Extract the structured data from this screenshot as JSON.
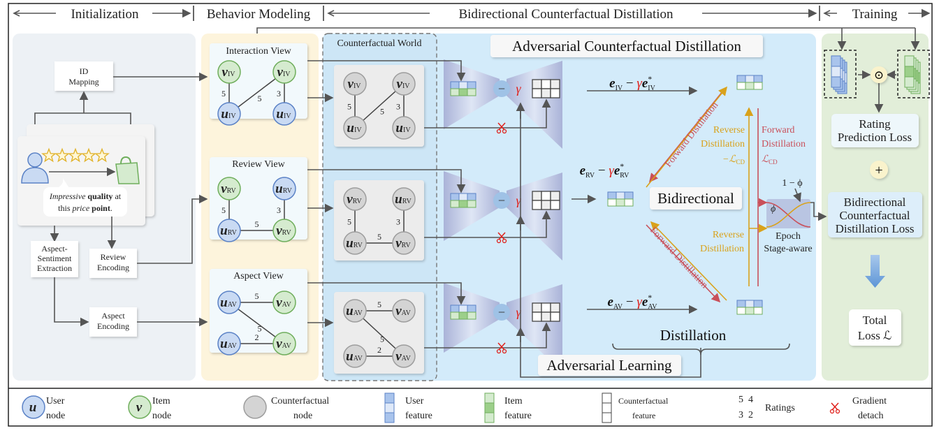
{
  "header": {
    "sections": [
      "Initialization",
      "Behavior Modeling",
      "Bidirectional Counterfactual Distillation",
      "Training"
    ]
  },
  "init": {
    "id_mapping": [
      "ID",
      "Mapping"
    ],
    "review_text": [
      [
        {
          "t": "Impressive",
          "s": "it"
        },
        {
          "t": " quality",
          "s": "bd"
        },
        {
          "t": " at",
          "s": ""
        }
      ],
      [
        {
          "t": "this ",
          "s": ""
        },
        {
          "t": "price",
          "s": "it"
        },
        {
          "t": " point",
          "s": "bd"
        },
        {
          "t": ".",
          "s": ""
        }
      ]
    ],
    "aspect_extraction": [
      "Aspect-",
      "Sentiment",
      "Extraction"
    ],
    "review_encoding": [
      "Review",
      "Encoding"
    ],
    "aspect_encoding": [
      "Aspect",
      "Encoding"
    ]
  },
  "views": [
    {
      "title": "Interaction View",
      "nodes": [
        {
          "type": "item",
          "sym": "v",
          "sub": "IV"
        },
        {
          "type": "item",
          "sym": "v",
          "sub": "IV"
        },
        {
          "type": "user",
          "sym": "u",
          "sub": "IV"
        },
        {
          "type": "user",
          "sym": "u",
          "sub": "IV"
        }
      ],
      "edges": [
        {
          "from": 0,
          "to": 2,
          "rating": "5"
        },
        {
          "from": 1,
          "to": 2,
          "rating": "5"
        },
        {
          "from": 1,
          "to": 3,
          "rating": "3"
        }
      ]
    },
    {
      "title": "Review View",
      "nodes": [
        {
          "type": "item",
          "sym": "v",
          "sub": "RV"
        },
        {
          "type": "user",
          "sym": "u",
          "sub": "RV"
        },
        {
          "type": "user",
          "sym": "u",
          "sub": "RV"
        },
        {
          "type": "item",
          "sym": "v",
          "sub": "RV"
        }
      ],
      "edges": [
        {
          "from": 0,
          "to": 2,
          "rating": "5"
        },
        {
          "from": 1,
          "to": 3,
          "rating": "3"
        },
        {
          "from": 2,
          "to": 3,
          "rating": "5"
        }
      ]
    },
    {
      "title": "Aspect View",
      "nodes": [
        {
          "type": "user",
          "sym": "u",
          "sub": "AV"
        },
        {
          "type": "item",
          "sym": "v",
          "sub": "AV"
        },
        {
          "type": "user",
          "sym": "u",
          "sub": "AV"
        },
        {
          "type": "item",
          "sym": "v",
          "sub": "AV"
        }
      ],
      "edges": [
        {
          "from": 0,
          "to": 1,
          "rating": "5"
        },
        {
          "from": 0,
          "to": 3,
          "rating": "5"
        },
        {
          "from": 2,
          "to": 3,
          "rating": "2"
        }
      ]
    }
  ],
  "counterfactual_world": {
    "title": "Counterfactual World"
  },
  "distillation": {
    "title": "Adversarial Counterfactual Distillation",
    "minus": "−",
    "gamma": "γ",
    "formulas": [
      {
        "base": "e",
        "sub": "IV",
        "op": " − ",
        "gamma": "γ",
        "sup": "*"
      },
      {
        "base": "e",
        "sub": "RV",
        "op": " − ",
        "gamma": "γ",
        "sup": "*"
      },
      {
        "base": "e",
        "sub": "AV",
        "op": " − ",
        "gamma": "γ",
        "sup": "*"
      }
    ],
    "bidirectional": "Bidirectional",
    "distillation": "Distillation",
    "adversarial_learning": "Adversarial Learning",
    "forward_distillation": "Forward Distillation",
    "reverse_upper": [
      "Reverse",
      "Distillation",
      "−ℒ",
      "CD"
    ],
    "forward_upper": [
      "Forward",
      "Distillation",
      "ℒ",
      "CD"
    ],
    "reverse_lower": [
      "Reverse",
      "Distillation"
    ],
    "phi": "ϕ",
    "one_minus_phi": "1 − ϕ",
    "epoch": "Epoch",
    "stage_aware": "Stage-aware"
  },
  "training": {
    "odot": "⊙",
    "rating_loss": [
      "Rating",
      "Prediction Loss"
    ],
    "plus": "+",
    "bcd_loss": [
      "Bidirectional",
      "Counterfactual",
      "Distillation Loss"
    ],
    "total_loss": [
      "Total",
      "Loss ℒ"
    ]
  },
  "legend": {
    "user_node": {
      "sym": "u",
      "label": [
        "User",
        "node"
      ]
    },
    "item_node": {
      "sym": "v",
      "label": [
        "Item",
        "node"
      ]
    },
    "cf_node": {
      "label": [
        "Counterfactual",
        "node"
      ]
    },
    "user_feature": [
      "User",
      "feature"
    ],
    "item_feature": [
      "Item",
      "feature"
    ],
    "cf_feature": [
      "Counterfactual",
      "feature"
    ],
    "ratings": {
      "values": [
        "5  4",
        "3  2"
      ],
      "label": "Ratings"
    },
    "gradient_detach": [
      "Gradient",
      "detach"
    ]
  },
  "colors": {
    "user": "#c9daf3",
    "user_stroke": "#5b82c6",
    "item": "#d5ebcf",
    "item_stroke": "#6fae5c",
    "cf": "#d4d4d4",
    "cf_stroke": "#9d9d9d",
    "gamma": "#e0201b",
    "forward": "#c9505a",
    "reverse": "#d9a21b"
  },
  "icons": {
    "scissors": "scissors-icon",
    "user": "user-icon",
    "bag": "shopping-bag-icon",
    "star": "star-icon"
  }
}
